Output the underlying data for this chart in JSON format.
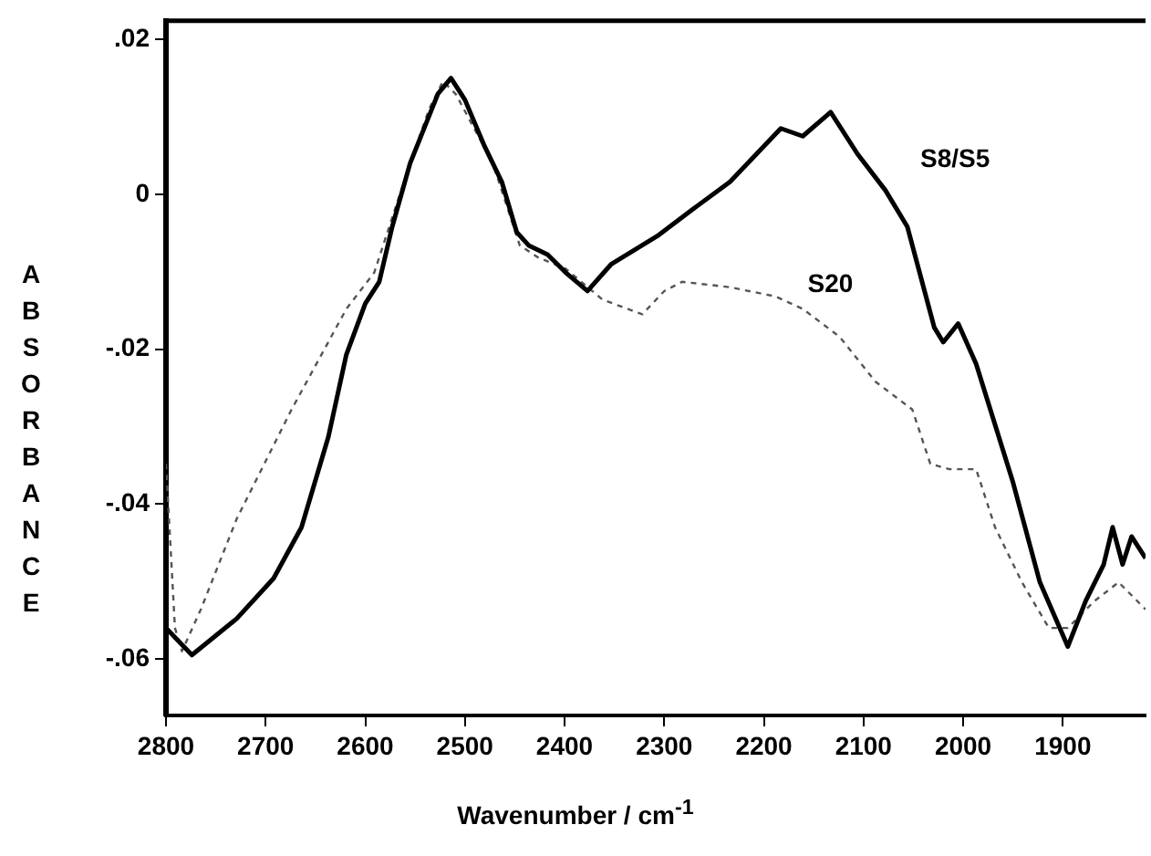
{
  "chart_data": {
    "type": "line",
    "xlabel": "Wavenumber / cm$^{-1}$",
    "ylabel": "ABSORBANCE",
    "xlim": [
      2800,
      1817
    ],
    "ylim": [
      -0.0673,
      0.0224
    ],
    "xticks": [
      2800,
      2700,
      2600,
      2500,
      2400,
      2300,
      2200,
      2100,
      2000,
      1900
    ],
    "yticks": [
      {
        "value": 0.02,
        "label": ".02"
      },
      {
        "value": 0,
        "label": "0"
      },
      {
        "value": -0.02,
        "label": "-.02"
      },
      {
        "value": -0.04,
        "label": "-.04"
      },
      {
        "value": -0.06,
        "label": "-.06"
      }
    ],
    "grid": false,
    "legend": false,
    "marker": "none",
    "series": [
      {
        "name": "S8/S5",
        "color": "#000000",
        "line_style": "solid",
        "x": [
          2800,
          2774,
          2729,
          2692,
          2664,
          2637,
          2619,
          2600,
          2586,
          2573,
          2555,
          2527,
          2514,
          2500,
          2481,
          2463,
          2448,
          2436,
          2417,
          2399,
          2377,
          2353,
          2307,
          2271,
          2234,
          2183,
          2161,
          2133,
          2106,
          2078,
          2056,
          2029,
          2020,
          2005,
          1987,
          1950,
          1923,
          1895,
          1877,
          1859,
          1850,
          1840,
          1831,
          1817
        ],
        "values": [
          -0.056,
          -0.0595,
          -0.0548,
          -0.0496,
          -0.043,
          -0.0313,
          -0.0207,
          -0.0141,
          -0.0113,
          -0.0042,
          0.004,
          0.013,
          0.015,
          0.0122,
          0.0064,
          0.0016,
          -0.0049,
          -0.0066,
          -0.0078,
          -0.0101,
          -0.0125,
          -0.009,
          -0.0054,
          -0.0019,
          0.0016,
          0.0085,
          0.0075,
          0.0106,
          0.0052,
          0.0005,
          -0.0042,
          -0.0172,
          -0.0191,
          -0.0167,
          -0.0219,
          -0.0372,
          -0.0501,
          -0.0584,
          -0.0525,
          -0.0478,
          -0.043,
          -0.0478,
          -0.0442,
          -0.047
        ]
      },
      {
        "name": "S20",
        "color": "#555555",
        "line_style": "dashed",
        "x": [
          2800,
          2791,
          2784,
          2765,
          2729,
          2674,
          2619,
          2591,
          2564,
          2536,
          2522,
          2509,
          2472,
          2445,
          2426,
          2399,
          2362,
          2322,
          2300,
          2282,
          2234,
          2188,
          2161,
          2124,
          2088,
          2051,
          2033,
          2014,
          1987,
          1968,
          1941,
          1914,
          1895,
          1868,
          1844,
          1817
        ],
        "values": [
          -0.0348,
          -0.056,
          -0.059,
          -0.0536,
          -0.0419,
          -0.0278,
          -0.0148,
          -0.0101,
          0.0005,
          0.011,
          0.0146,
          0.0129,
          0.004,
          -0.0066,
          -0.0082,
          -0.0096,
          -0.0136,
          -0.0155,
          -0.0125,
          -0.0113,
          -0.012,
          -0.0132,
          -0.0148,
          -0.0184,
          -0.0242,
          -0.0278,
          -0.0348,
          -0.0355,
          -0.0355,
          -0.043,
          -0.0501,
          -0.056,
          -0.056,
          -0.0525,
          -0.0501,
          -0.0536
        ]
      }
    ]
  }
}
